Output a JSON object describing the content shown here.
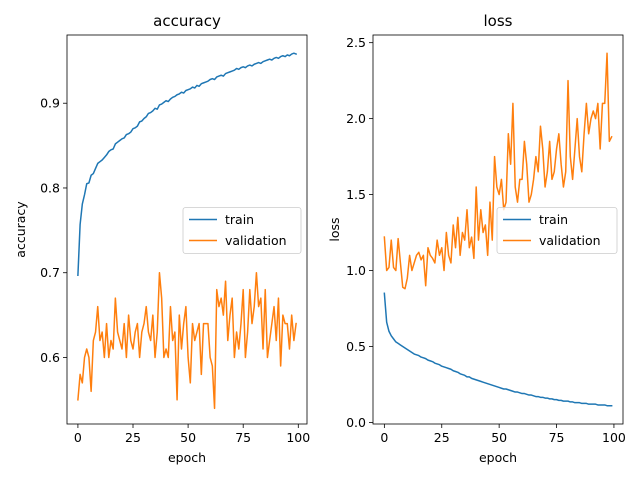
{
  "chart_data": [
    {
      "type": "line",
      "title": "accuracy",
      "xlabel": "epoch",
      "ylabel": "accuracy",
      "xlim": [
        -4.95,
        103.95
      ],
      "ylim": [
        0.5215,
        0.9805
      ],
      "xticks": [
        0,
        25,
        50,
        75,
        100
      ],
      "yticks": [
        0.6,
        0.7,
        0.8,
        0.9
      ],
      "ytick_labels": [
        "0.6",
        "0.7",
        "0.8",
        "0.9"
      ],
      "legend": "center-right",
      "grid": false,
      "series": [
        {
          "name": "train",
          "color": "#1f77b4",
          "x": [
            0,
            1,
            2,
            3,
            4,
            5,
            6,
            7,
            8,
            9,
            10,
            11,
            12,
            13,
            14,
            15,
            16,
            17,
            18,
            19,
            20,
            21,
            22,
            23,
            24,
            25,
            26,
            27,
            28,
            29,
            30,
            31,
            32,
            33,
            34,
            35,
            36,
            37,
            38,
            39,
            40,
            41,
            42,
            43,
            44,
            45,
            46,
            47,
            48,
            49,
            50,
            51,
            52,
            53,
            54,
            55,
            56,
            57,
            58,
            59,
            60,
            61,
            62,
            63,
            64,
            65,
            66,
            67,
            68,
            69,
            70,
            71,
            72,
            73,
            74,
            75,
            76,
            77,
            78,
            79,
            80,
            81,
            82,
            83,
            84,
            85,
            86,
            87,
            88,
            89,
            90,
            91,
            92,
            93,
            94,
            95,
            96,
            97,
            98,
            99
          ],
          "y": [
            0.697,
            0.757,
            0.781,
            0.792,
            0.805,
            0.806,
            0.815,
            0.817,
            0.823,
            0.829,
            0.831,
            0.833,
            0.836,
            0.839,
            0.843,
            0.845,
            0.846,
            0.852,
            0.854,
            0.856,
            0.858,
            0.859,
            0.863,
            0.864,
            0.866,
            0.87,
            0.871,
            0.873,
            0.878,
            0.879,
            0.882,
            0.884,
            0.888,
            0.889,
            0.891,
            0.894,
            0.893,
            0.898,
            0.899,
            0.901,
            0.903,
            0.902,
            0.905,
            0.907,
            0.908,
            0.91,
            0.911,
            0.913,
            0.912,
            0.915,
            0.916,
            0.917,
            0.919,
            0.918,
            0.921,
            0.92,
            0.923,
            0.924,
            0.925,
            0.926,
            0.928,
            0.929,
            0.928,
            0.931,
            0.932,
            0.933,
            0.932,
            0.935,
            0.936,
            0.937,
            0.938,
            0.939,
            0.941,
            0.94,
            0.942,
            0.943,
            0.942,
            0.944,
            0.945,
            0.944,
            0.946,
            0.947,
            0.948,
            0.947,
            0.949,
            0.95,
            0.951,
            0.952,
            0.951,
            0.953,
            0.954,
            0.953,
            0.955,
            0.956,
            0.955,
            0.957,
            0.956,
            0.958,
            0.959,
            0.958
          ]
        },
        {
          "name": "validation",
          "color": "#ff7f0e",
          "x": [
            0,
            1,
            2,
            3,
            4,
            5,
            6,
            7,
            8,
            9,
            10,
            11,
            12,
            13,
            14,
            15,
            16,
            17,
            18,
            19,
            20,
            21,
            22,
            23,
            24,
            25,
            26,
            27,
            28,
            29,
            30,
            31,
            32,
            33,
            34,
            35,
            36,
            37,
            38,
            39,
            40,
            41,
            42,
            43,
            44,
            45,
            46,
            47,
            48,
            49,
            50,
            51,
            52,
            53,
            54,
            55,
            56,
            57,
            58,
            59,
            60,
            61,
            62,
            63,
            64,
            65,
            66,
            67,
            68,
            69,
            70,
            71,
            72,
            73,
            74,
            75,
            76,
            77,
            78,
            79,
            80,
            81,
            82,
            83,
            84,
            85,
            86,
            87,
            88,
            89,
            90,
            91,
            92,
            93,
            94,
            95,
            96,
            97,
            98,
            99
          ],
          "y": [
            0.55,
            0.58,
            0.57,
            0.6,
            0.61,
            0.6,
            0.56,
            0.62,
            0.63,
            0.66,
            0.62,
            0.63,
            0.6,
            0.64,
            0.6,
            0.62,
            0.61,
            0.67,
            0.63,
            0.62,
            0.61,
            0.64,
            0.6,
            0.65,
            0.62,
            0.61,
            0.63,
            0.64,
            0.6,
            0.63,
            0.64,
            0.66,
            0.63,
            0.62,
            0.65,
            0.6,
            0.63,
            0.7,
            0.67,
            0.6,
            0.61,
            0.6,
            0.66,
            0.62,
            0.63,
            0.55,
            0.65,
            0.61,
            0.64,
            0.66,
            0.6,
            0.57,
            0.64,
            0.62,
            0.63,
            0.64,
            0.58,
            0.64,
            0.64,
            0.64,
            0.6,
            0.59,
            0.54,
            0.68,
            0.66,
            0.67,
            0.65,
            0.69,
            0.62,
            0.65,
            0.67,
            0.6,
            0.63,
            0.61,
            0.64,
            0.68,
            0.6,
            0.63,
            0.68,
            0.64,
            0.66,
            0.7,
            0.66,
            0.67,
            0.61,
            0.68,
            0.6,
            0.62,
            0.64,
            0.66,
            0.62,
            0.67,
            0.59,
            0.65,
            0.64,
            0.64,
            0.61,
            0.65,
            0.62,
            0.64
          ]
        }
      ]
    },
    {
      "type": "line",
      "title": "loss",
      "xlabel": "epoch",
      "ylabel": "loss",
      "xlim": [
        -4.95,
        103.95
      ],
      "ylim": [
        -0.0105,
        2.5505
      ],
      "xticks": [
        0,
        25,
        50,
        75,
        100
      ],
      "yticks": [
        0.0,
        0.5,
        1.0,
        1.5,
        2.0,
        2.5
      ],
      "ytick_labels": [
        "0.0",
        "0.5",
        "1.0",
        "1.5",
        "2.0",
        "2.5"
      ],
      "legend": "center-right",
      "grid": false,
      "series": [
        {
          "name": "train",
          "color": "#1f77b4",
          "x": [
            0,
            1,
            2,
            3,
            4,
            5,
            6,
            7,
            8,
            9,
            10,
            11,
            12,
            13,
            14,
            15,
            16,
            17,
            18,
            19,
            20,
            21,
            22,
            23,
            24,
            25,
            26,
            27,
            28,
            29,
            30,
            31,
            32,
            33,
            34,
            35,
            36,
            37,
            38,
            39,
            40,
            41,
            42,
            43,
            44,
            45,
            46,
            47,
            48,
            49,
            50,
            51,
            52,
            53,
            54,
            55,
            56,
            57,
            58,
            59,
            60,
            61,
            62,
            63,
            64,
            65,
            66,
            67,
            68,
            69,
            70,
            71,
            72,
            73,
            74,
            75,
            76,
            77,
            78,
            79,
            80,
            81,
            82,
            83,
            84,
            85,
            86,
            87,
            88,
            89,
            90,
            91,
            92,
            93,
            94,
            95,
            96,
            97,
            98,
            99
          ],
          "y": [
            0.85,
            0.66,
            0.6,
            0.57,
            0.55,
            0.53,
            0.52,
            0.51,
            0.5,
            0.49,
            0.48,
            0.47,
            0.46,
            0.45,
            0.445,
            0.44,
            0.43,
            0.425,
            0.42,
            0.41,
            0.405,
            0.4,
            0.39,
            0.385,
            0.38,
            0.37,
            0.365,
            0.36,
            0.355,
            0.35,
            0.34,
            0.335,
            0.33,
            0.32,
            0.315,
            0.31,
            0.3,
            0.3,
            0.29,
            0.285,
            0.28,
            0.275,
            0.27,
            0.265,
            0.26,
            0.255,
            0.25,
            0.245,
            0.24,
            0.235,
            0.23,
            0.225,
            0.22,
            0.22,
            0.215,
            0.21,
            0.205,
            0.2,
            0.2,
            0.195,
            0.19,
            0.19,
            0.185,
            0.18,
            0.18,
            0.175,
            0.17,
            0.17,
            0.165,
            0.165,
            0.16,
            0.16,
            0.155,
            0.155,
            0.15,
            0.15,
            0.145,
            0.145,
            0.14,
            0.14,
            0.14,
            0.135,
            0.135,
            0.13,
            0.13,
            0.13,
            0.125,
            0.125,
            0.125,
            0.12,
            0.12,
            0.12,
            0.12,
            0.115,
            0.115,
            0.115,
            0.115,
            0.11,
            0.11,
            0.11
          ]
        },
        {
          "name": "validation",
          "color": "#ff7f0e",
          "x": [
            0,
            1,
            2,
            3,
            4,
            5,
            6,
            7,
            8,
            9,
            10,
            11,
            12,
            13,
            14,
            15,
            16,
            17,
            18,
            19,
            20,
            21,
            22,
            23,
            24,
            25,
            26,
            27,
            28,
            29,
            30,
            31,
            32,
            33,
            34,
            35,
            36,
            37,
            38,
            39,
            40,
            41,
            42,
            43,
            44,
            45,
            46,
            47,
            48,
            49,
            50,
            51,
            52,
            53,
            54,
            55,
            56,
            57,
            58,
            59,
            60,
            61,
            62,
            63,
            64,
            65,
            66,
            67,
            68,
            69,
            70,
            71,
            72,
            73,
            74,
            75,
            76,
            77,
            78,
            79,
            80,
            81,
            82,
            83,
            84,
            85,
            86,
            87,
            88,
            89,
            90,
            91,
            92,
            93,
            94,
            95,
            96,
            97,
            98,
            99
          ],
          "y": [
            1.22,
            1.0,
            1.02,
            1.2,
            1.02,
            1.0,
            1.21,
            1.05,
            0.89,
            0.88,
            0.95,
            1.1,
            1.0,
            1.05,
            1.1,
            1.12,
            1.07,
            1.1,
            0.9,
            1.15,
            1.1,
            1.08,
            1.05,
            1.2,
            1.1,
            1.15,
            1.0,
            1.25,
            1.1,
            1.05,
            1.3,
            1.15,
            1.35,
            1.1,
            1.25,
            1.2,
            1.4,
            1.15,
            1.22,
            1.08,
            1.55,
            1.2,
            1.4,
            1.25,
            1.3,
            1.1,
            1.45,
            1.2,
            1.75,
            1.55,
            1.5,
            1.6,
            1.4,
            1.45,
            1.9,
            1.7,
            2.1,
            1.55,
            1.45,
            1.6,
            1.6,
            1.85,
            1.7,
            1.45,
            1.5,
            1.6,
            1.75,
            1.65,
            1.95,
            1.8,
            1.55,
            1.65,
            1.85,
            1.6,
            1.65,
            1.8,
            1.9,
            1.7,
            1.55,
            1.65,
            2.25,
            1.75,
            1.6,
            1.8,
            2.0,
            1.75,
            1.65,
            1.9,
            2.1,
            1.9,
            2.0,
            2.05,
            2.0,
            2.1,
            1.8,
            2.1,
            2.1,
            2.43,
            1.85,
            1.88
          ]
        }
      ]
    }
  ]
}
